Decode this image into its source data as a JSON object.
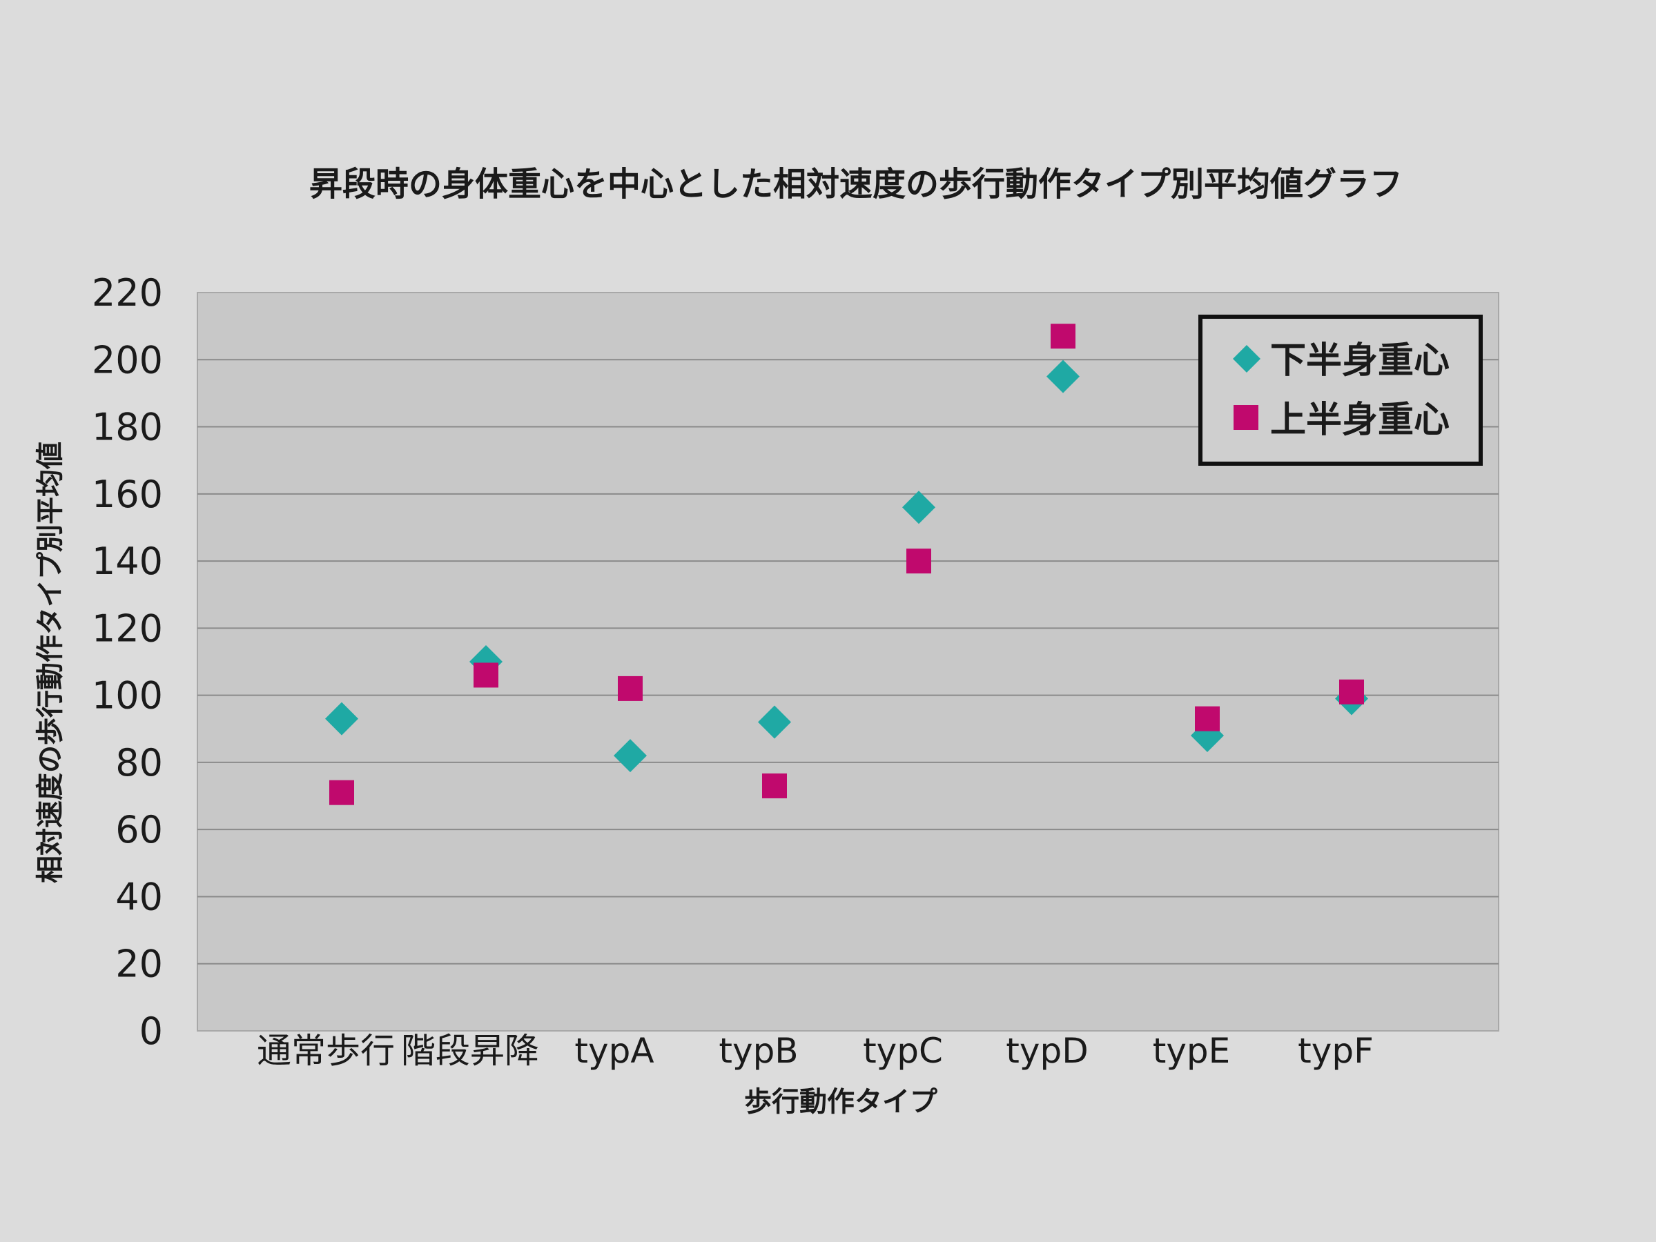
{
  "chart_data": {
    "type": "scatter",
    "title": "昇段時の身体重心を中心とした相対速度の歩行動作タイプ別平均値グラフ",
    "xlabel": "歩行動作タイプ",
    "ylabel": "相対速度の歩行動作タイプ別平均値",
    "categories": [
      "通常歩行",
      "階段昇降",
      "typA",
      "typB",
      "typC",
      "typD",
      "typE",
      "typF"
    ],
    "ylim": [
      0,
      220
    ],
    "yticks": [
      0,
      20,
      40,
      60,
      80,
      100,
      120,
      140,
      160,
      180,
      200,
      220
    ],
    "grid": true,
    "legend": "top-right",
    "series": [
      {
        "name": "下半身重心",
        "marker": "diamond",
        "color": "#1fa9a4",
        "values": [
          93,
          110,
          82,
          92,
          156,
          195,
          88,
          99
        ]
      },
      {
        "name": "上半身重心",
        "marker": "square",
        "color": "#c0096d",
        "values": [
          71,
          106,
          102,
          73,
          140,
          207,
          93,
          101
        ]
      }
    ]
  }
}
